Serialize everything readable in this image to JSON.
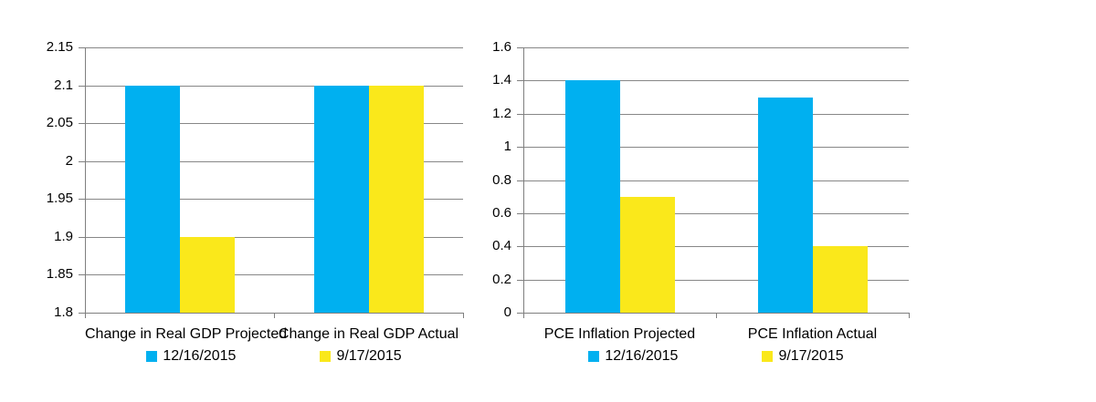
{
  "page": {
    "background": "#ffffff"
  },
  "colors": {
    "series_blue": "#00B0F0",
    "series_yellow": "#FAE81B",
    "gridline": "#878787",
    "axis": "#7f7f7f",
    "text": "#000000"
  },
  "chart_data": [
    {
      "type": "bar",
      "name": "gdp-chart",
      "title": "",
      "xlabel": "",
      "ylabel": "",
      "categories": [
        "Change in Real GDP Projected",
        "Change in Real GDP Actual"
      ],
      "series": [
        {
          "name": "12/16/2015",
          "color": "#00B0F0",
          "values": [
            2.1,
            2.1
          ]
        },
        {
          "name": "9/17/2015",
          "color": "#FAE81B",
          "values": [
            1.9,
            2.1
          ]
        }
      ],
      "ylim": [
        1.8,
        2.15
      ],
      "ytick_step": 0.05,
      "ytick_labels": [
        "1.8",
        "1.85",
        "1.9",
        "1.95",
        "2",
        "2.05",
        "2.1",
        "2.15"
      ],
      "grid": true,
      "legend_position": "bottom",
      "legend": [
        "12/16/2015",
        "9/17/2015"
      ]
    },
    {
      "type": "bar",
      "name": "pce-chart",
      "title": "",
      "xlabel": "",
      "ylabel": "",
      "categories": [
        "PCE Inflation Projected",
        "PCE Inflation Actual"
      ],
      "series": [
        {
          "name": "12/16/2015",
          "color": "#00B0F0",
          "values": [
            1.4,
            1.3
          ]
        },
        {
          "name": "9/17/2015",
          "color": "#FAE81B",
          "values": [
            0.7,
            0.4
          ]
        }
      ],
      "ylim": [
        0,
        1.6
      ],
      "ytick_step": 0.2,
      "ytick_labels": [
        "0",
        "0.2",
        "0.4",
        "0.6",
        "0.8",
        "1",
        "1.2",
        "1.4",
        "1.6"
      ],
      "grid": true,
      "legend_position": "bottom",
      "legend": [
        "12/16/2015",
        "9/17/2015"
      ]
    }
  ]
}
